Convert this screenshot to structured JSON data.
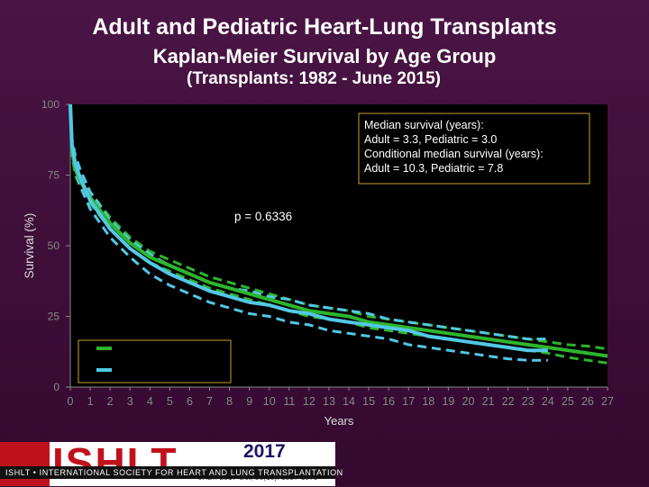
{
  "slide": {
    "title_line1": "Adult and Pediatric Heart-Lung Transplants",
    "title_line2": "Kaplan-Meier Survival by Age Group",
    "title_line3": "(Transplants: 1982 - June 2015)"
  },
  "footer": {
    "logo_text": "ISHLT",
    "society": "ISHLT • INTERNATIONAL SOCIETY FOR HEART AND LUNG TRANSPLANTATION",
    "year": "2017",
    "citation": "JHLT. 2017 Oct; 36(10): 1037-1079"
  },
  "colors": {
    "adult": "#2db52d",
    "pediatric": "#52c8e6",
    "background": "#000000"
  },
  "chart_data": {
    "type": "line",
    "xlabel": "Years",
    "ylabel": "Survival (%)",
    "xlim": [
      0,
      27
    ],
    "ylim": [
      0,
      100
    ],
    "xticks": [
      0,
      1,
      2,
      3,
      4,
      5,
      6,
      7,
      8,
      9,
      10,
      11,
      12,
      13,
      14,
      15,
      16,
      17,
      18,
      19,
      20,
      21,
      22,
      23,
      24,
      25,
      26,
      27
    ],
    "yticks": [
      0,
      25,
      50,
      75,
      100
    ],
    "annotation_lines": [
      "Median survival (years):",
      "Adult = 3.3, Pediatric = 3.0",
      "Conditional median survival (years):",
      "Adult = 10.3, Pediatric = 7.8"
    ],
    "p_value": "p = 0.6336",
    "series": [
      {
        "color": "#2db52d",
        "x": [
          0,
          0.083,
          0.25,
          0.5,
          1,
          2,
          3,
          4,
          5,
          6,
          7,
          8,
          9,
          10,
          11,
          12,
          13,
          14,
          15,
          16,
          17,
          18,
          19,
          20,
          21,
          22,
          23,
          24,
          25,
          26,
          27
        ],
        "values": [
          100,
          84,
          77,
          73,
          67,
          58,
          51,
          46,
          43,
          40,
          37,
          35,
          33,
          31,
          29,
          27,
          26,
          25,
          23,
          22,
          21,
          20,
          19,
          18,
          17,
          16,
          15,
          14,
          13,
          12,
          11
        ],
        "ci_low": [
          100,
          82,
          75,
          71,
          65,
          56,
          49,
          44,
          41,
          38,
          35,
          33,
          31,
          29,
          27,
          25,
          24,
          23,
          21,
          20,
          19,
          18,
          17,
          16,
          15,
          14,
          13,
          12,
          10.5,
          9.5,
          8.5
        ],
        "ci_high": [
          100,
          86,
          79,
          75,
          69,
          60,
          53,
          48,
          45,
          42,
          39,
          37,
          35,
          33,
          31,
          29,
          28,
          27,
          25,
          24,
          23,
          22,
          21,
          20,
          19,
          18,
          17,
          16,
          15,
          14.5,
          13.5
        ]
      },
      {
        "color": "#52c8e6",
        "x": [
          0,
          0.083,
          0.25,
          0.5,
          1,
          2,
          3,
          4,
          5,
          6,
          7,
          8,
          9,
          10,
          11,
          12,
          13,
          14,
          15,
          16,
          17,
          18,
          19,
          20,
          21,
          22,
          23,
          24
        ],
        "values": [
          100,
          86,
          79,
          74,
          66,
          56,
          49,
          44,
          40,
          37,
          34,
          32,
          30,
          29,
          27,
          26,
          24,
          23,
          22,
          21,
          20,
          18,
          17,
          16,
          15,
          14,
          13,
          13
        ],
        "ci_low": [
          100,
          83,
          76,
          71,
          63,
          53,
          46,
          40,
          36,
          33,
          30,
          28,
          26,
          25,
          23,
          22,
          20,
          19,
          18,
          17,
          15,
          14,
          13,
          12,
          11,
          10,
          9.5,
          9.5
        ],
        "ci_high": [
          100,
          88,
          82,
          77,
          69,
          59,
          52,
          47,
          43,
          40,
          37,
          35,
          34,
          32,
          31,
          29,
          28,
          27,
          26,
          24,
          23,
          22,
          21,
          20,
          19,
          18,
          17,
          17
        ]
      }
    ]
  }
}
